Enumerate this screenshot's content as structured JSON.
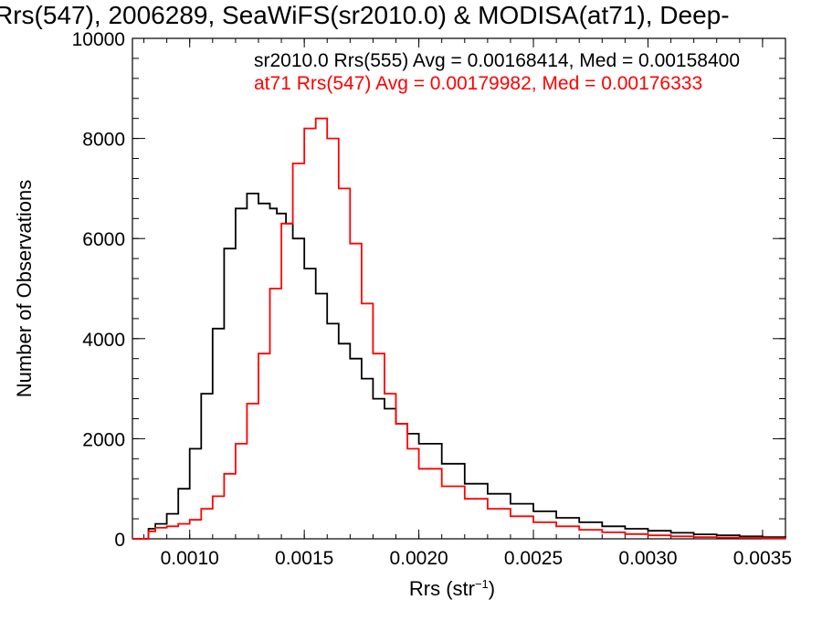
{
  "chart_data": {
    "type": "line",
    "title": "Rrs(547), 2006289, SeaWiFS(sr2010.0) & MODISA(at71), Deep-",
    "xlabel": "Rrs (str",
    "xlabel_sup": "−1",
    "xlabel_close": ")",
    "ylabel": "Number of Observations",
    "xlim": [
      0.00075,
      0.0036
    ],
    "ylim": [
      0,
      10000
    ],
    "x_ticks": [
      {
        "value": 0.001,
        "label": "0.0010"
      },
      {
        "value": 0.0015,
        "label": "0.0015"
      },
      {
        "value": 0.002,
        "label": "0.0020"
      },
      {
        "value": 0.0025,
        "label": "0.0025"
      },
      {
        "value": 0.003,
        "label": "0.0030"
      },
      {
        "value": 0.0035,
        "label": "0.0035"
      }
    ],
    "y_ticks": [
      {
        "value": 0,
        "label": "0"
      },
      {
        "value": 2000,
        "label": "2000"
      },
      {
        "value": 4000,
        "label": "4000"
      },
      {
        "value": 6000,
        "label": "6000"
      },
      {
        "value": 8000,
        "label": "8000"
      },
      {
        "value": 10000,
        "label": "10000"
      }
    ],
    "legend": [
      {
        "text": "sr2010.0 Rrs(555) Avg = 0.00168414, Med = 0.00158400",
        "color": "#000000"
      },
      {
        "text": "at71 Rrs(547) Avg = 0.00179982, Med = 0.00176333",
        "color": "#ff0000"
      }
    ],
    "series": [
      {
        "color": "#000000",
        "x": [
          0.00075,
          0.0008,
          0.00082,
          0.00085,
          0.0009,
          0.00095,
          0.001,
          0.00105,
          0.0011,
          0.00115,
          0.0012,
          0.00125,
          0.0013,
          0.00135,
          0.00138,
          0.00142,
          0.00145,
          0.0015,
          0.00155,
          0.0016,
          0.00165,
          0.0017,
          0.00175,
          0.0018,
          0.00185,
          0.0019,
          0.00195,
          0.002,
          0.0021,
          0.0022,
          0.0023,
          0.0024,
          0.0025,
          0.0026,
          0.0027,
          0.0028,
          0.0029,
          0.003,
          0.0031,
          0.0032,
          0.0033,
          0.0034,
          0.0035,
          0.0036
        ],
        "y": [
          0,
          0,
          200,
          300,
          500,
          1000,
          1800,
          2900,
          4200,
          5800,
          6600,
          6900,
          6700,
          6600,
          6500,
          6300,
          6000,
          5400,
          4900,
          4300,
          3900,
          3600,
          3200,
          2800,
          2600,
          2300,
          2100,
          1900,
          1500,
          1100,
          900,
          700,
          550,
          420,
          330,
          250,
          200,
          160,
          120,
          90,
          70,
          50,
          35,
          25
        ]
      },
      {
        "color": "#ff0000",
        "x": [
          0.00075,
          0.0008,
          0.00082,
          0.00085,
          0.0009,
          0.00095,
          0.001,
          0.00105,
          0.0011,
          0.00115,
          0.0012,
          0.00125,
          0.0013,
          0.00135,
          0.0014,
          0.00145,
          0.0015,
          0.00155,
          0.0016,
          0.00165,
          0.0017,
          0.00175,
          0.0018,
          0.00185,
          0.0019,
          0.00195,
          0.002,
          0.0021,
          0.0022,
          0.0023,
          0.0024,
          0.0025,
          0.0026,
          0.0027,
          0.0028,
          0.0029,
          0.003,
          0.0031,
          0.0032,
          0.0033,
          0.0034,
          0.0035,
          0.0036
        ],
        "y": [
          0,
          0,
          150,
          220,
          250,
          300,
          380,
          600,
          850,
          1300,
          1900,
          2700,
          3700,
          5000,
          6300,
          7500,
          8200,
          8400,
          8000,
          7000,
          5900,
          4700,
          3700,
          2900,
          2300,
          1800,
          1400,
          1050,
          800,
          600,
          450,
          330,
          250,
          180,
          130,
          95,
          70,
          50,
          35,
          25,
          18,
          12,
          8
        ]
      }
    ]
  }
}
